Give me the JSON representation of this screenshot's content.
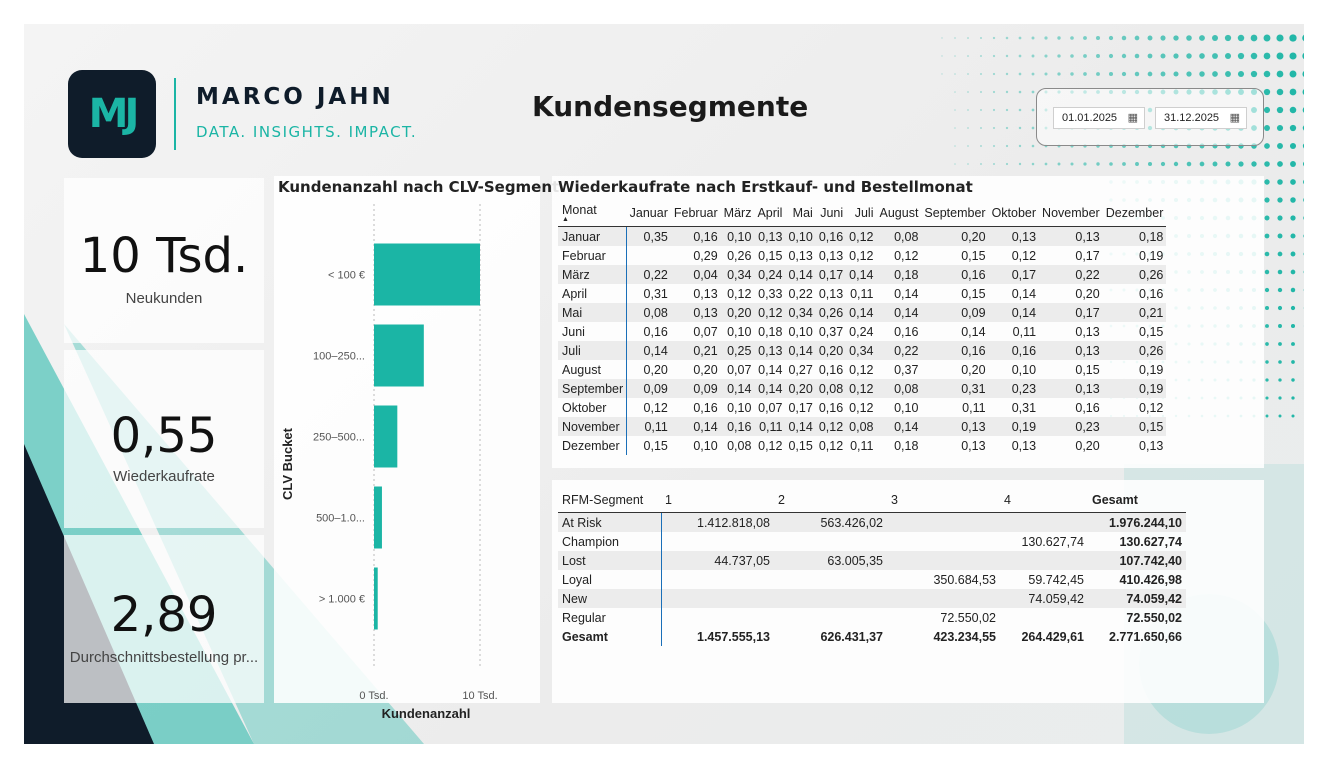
{
  "brand": {
    "logo": "MJ",
    "name": "MARCO JAHN",
    "tagline": "DATA. INSIGHTS. IMPACT."
  },
  "page_title": "Kundensegmente",
  "date_range": {
    "start": "01.01.2025",
    "end": "31.12.2025",
    "icon": "calendar-icon"
  },
  "kpis": [
    {
      "value": "10 Tsd.",
      "label": "Neukunden"
    },
    {
      "value": "0,55",
      "label": "Wiederkaufrate"
    },
    {
      "value": "2,89",
      "label": "Durchschnittsbestellung pr..."
    }
  ],
  "colors": {
    "accent": "#1bb5a5",
    "dark": "#0f1c2a",
    "matrix_line": "#1a6fb8"
  },
  "chart_data": {
    "type": "bar",
    "orientation": "horizontal",
    "title": "Kundenanzahl nach CLV-Segment",
    "xlabel": "Kundenanzahl",
    "ylabel": "CLV Bucket",
    "categories": [
      "< 100 €",
      "100–250...",
      "250–500...",
      "500–1.0...",
      "> 1.000 €"
    ],
    "values": [
      10000,
      4700,
      2200,
      750,
      350
    ],
    "xlim": [
      0,
      10000
    ],
    "xticks": [
      "0 Tsd.",
      "10 Tsd."
    ],
    "color": "#1bb5a5"
  },
  "matrix": {
    "title": "Wiederkaufrate nach Erstkauf- und Bestellmonat",
    "corner": "Monat",
    "columns": [
      "Januar",
      "Februar",
      "März",
      "April",
      "Mai",
      "Juni",
      "Juli",
      "August",
      "September",
      "Oktober",
      "November",
      "Dezember"
    ],
    "rows": [
      {
        "label": "Januar",
        "values": [
          "0,35",
          "0,16",
          "0,10",
          "0,13",
          "0,10",
          "0,16",
          "0,12",
          "0,08",
          "0,20",
          "0,13",
          "0,13",
          "0,18"
        ]
      },
      {
        "label": "Februar",
        "values": [
          "",
          "0,29",
          "0,26",
          "0,15",
          "0,13",
          "0,13",
          "0,12",
          "0,12",
          "0,15",
          "0,12",
          "0,17",
          "0,19"
        ]
      },
      {
        "label": "März",
        "values": [
          "0,22",
          "0,04",
          "0,34",
          "0,24",
          "0,14",
          "0,17",
          "0,14",
          "0,18",
          "0,16",
          "0,17",
          "0,22",
          "0,26"
        ]
      },
      {
        "label": "April",
        "values": [
          "0,31",
          "0,13",
          "0,12",
          "0,33",
          "0,22",
          "0,13",
          "0,11",
          "0,14",
          "0,15",
          "0,14",
          "0,20",
          "0,16"
        ]
      },
      {
        "label": "Mai",
        "values": [
          "0,08",
          "0,13",
          "0,20",
          "0,12",
          "0,34",
          "0,26",
          "0,14",
          "0,14",
          "0,09",
          "0,14",
          "0,17",
          "0,21"
        ]
      },
      {
        "label": "Juni",
        "values": [
          "0,16",
          "0,07",
          "0,10",
          "0,18",
          "0,10",
          "0,37",
          "0,24",
          "0,16",
          "0,14",
          "0,11",
          "0,13",
          "0,15"
        ]
      },
      {
        "label": "Juli",
        "values": [
          "0,14",
          "0,21",
          "0,25",
          "0,13",
          "0,14",
          "0,20",
          "0,34",
          "0,22",
          "0,16",
          "0,16",
          "0,13",
          "0,26"
        ]
      },
      {
        "label": "August",
        "values": [
          "0,20",
          "0,20",
          "0,07",
          "0,14",
          "0,27",
          "0,16",
          "0,12",
          "0,37",
          "0,20",
          "0,10",
          "0,15",
          "0,19"
        ]
      },
      {
        "label": "September",
        "values": [
          "0,09",
          "0,09",
          "0,14",
          "0,14",
          "0,20",
          "0,08",
          "0,12",
          "0,08",
          "0,31",
          "0,23",
          "0,13",
          "0,19"
        ]
      },
      {
        "label": "Oktober",
        "values": [
          "0,12",
          "0,16",
          "0,10",
          "0,07",
          "0,17",
          "0,16",
          "0,12",
          "0,10",
          "0,11",
          "0,31",
          "0,16",
          "0,12"
        ]
      },
      {
        "label": "November",
        "values": [
          "0,11",
          "0,14",
          "0,16",
          "0,11",
          "0,14",
          "0,12",
          "0,08",
          "0,14",
          "0,13",
          "0,19",
          "0,23",
          "0,15"
        ]
      },
      {
        "label": "Dezember",
        "values": [
          "0,15",
          "0,10",
          "0,08",
          "0,12",
          "0,15",
          "0,12",
          "0,11",
          "0,18",
          "0,13",
          "0,13",
          "0,20",
          "0,13"
        ]
      }
    ]
  },
  "rfm": {
    "corner": "RFM-Segment",
    "columns": [
      "1",
      "2",
      "3",
      "4",
      "Gesamt"
    ],
    "rows": [
      {
        "label": "At Risk",
        "values": [
          "1.412.818,08",
          "563.426,02",
          "",
          "",
          "1.976.244,10"
        ]
      },
      {
        "label": "Champion",
        "values": [
          "",
          "",
          "",
          "130.627,74",
          "130.627,74"
        ]
      },
      {
        "label": "Lost",
        "values": [
          "44.737,05",
          "63.005,35",
          "",
          "",
          "107.742,40"
        ]
      },
      {
        "label": "Loyal",
        "values": [
          "",
          "",
          "350.684,53",
          "59.742,45",
          "410.426,98"
        ]
      },
      {
        "label": "New",
        "values": [
          "",
          "",
          "",
          "74.059,42",
          "74.059,42"
        ]
      },
      {
        "label": "Regular",
        "values": [
          "",
          "",
          "72.550,02",
          "",
          "72.550,02"
        ]
      }
    ],
    "total": {
      "label": "Gesamt",
      "values": [
        "1.457.555,13",
        "626.431,37",
        "423.234,55",
        "264.429,61",
        "2.771.650,66"
      ]
    }
  }
}
